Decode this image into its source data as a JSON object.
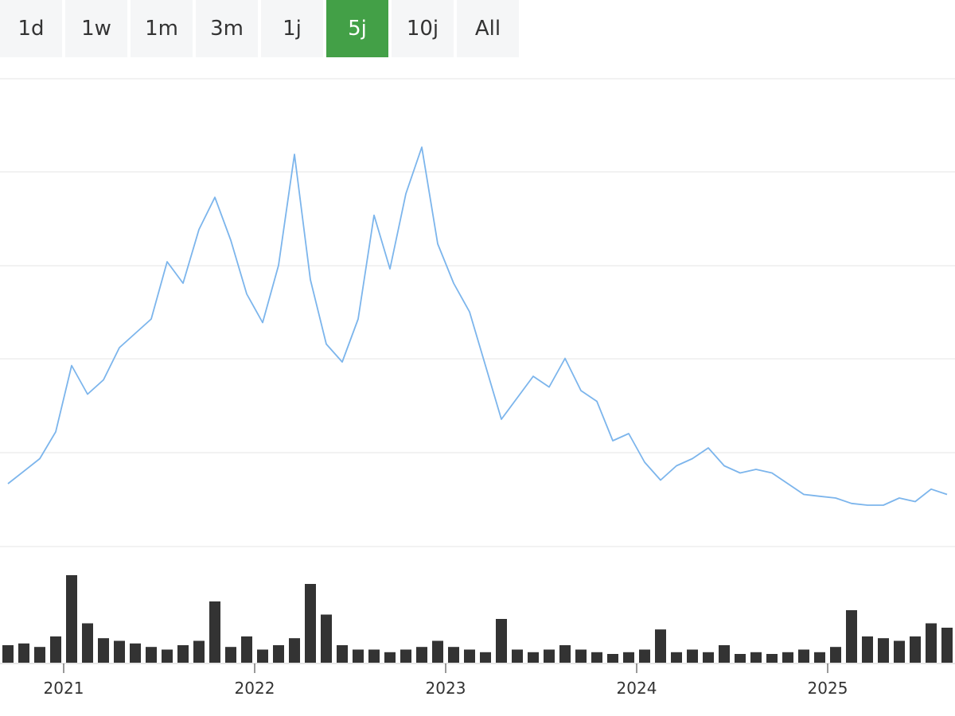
{
  "range_selector": {
    "buttons": [
      {
        "label": "1d"
      },
      {
        "label": "1w"
      },
      {
        "label": "1m"
      },
      {
        "label": "3m"
      },
      {
        "label": "1j"
      },
      {
        "label": "5j",
        "active": true
      },
      {
        "label": "10j"
      },
      {
        "label": "All"
      }
    ],
    "active_color": "#43a047"
  },
  "chart_data": [
    {
      "type": "line",
      "title": "",
      "xlabel": "",
      "ylabel": "",
      "x_tick_labels": [
        "2021",
        "2022",
        "2023",
        "2024",
        "2025"
      ],
      "x_range": [
        "2020-09",
        "2025-08"
      ],
      "y_tick_labels": [],
      "grid": true,
      "legend": "none",
      "line_color": "#7cb5ec",
      "series": [
        {
          "x": [
            "2020-09",
            "2020-10",
            "2020-11",
            "2020-12",
            "2021-01",
            "2021-02",
            "2021-03",
            "2021-04",
            "2021-05",
            "2021-06",
            "2021-07",
            "2021-08",
            "2021-09",
            "2021-10",
            "2021-11",
            "2021-12",
            "2022-01",
            "2022-02",
            "2022-03",
            "2022-04",
            "2022-05",
            "2022-06",
            "2022-07",
            "2022-08",
            "2022-09",
            "2022-10",
            "2022-11",
            "2022-12",
            "2023-01",
            "2023-02",
            "2023-03",
            "2023-04",
            "2023-05",
            "2023-06",
            "2023-07",
            "2023-08",
            "2023-09",
            "2023-10",
            "2023-11",
            "2023-12",
            "2024-01",
            "2024-02",
            "2024-03",
            "2024-04",
            "2024-05",
            "2024-06",
            "2024-07",
            "2024-08",
            "2024-09",
            "2024-10",
            "2024-11",
            "2024-12",
            "2025-01",
            "2025-02",
            "2025-03",
            "2025-04",
            "2025-05",
            "2025-06",
            "2025-07",
            "2025-08"
          ],
          "y": [
            0.6,
            0.95,
            1.3,
            2.05,
            3.9,
            3.1,
            3.5,
            4.4,
            4.8,
            5.2,
            6.8,
            6.2,
            7.7,
            8.6,
            7.4,
            5.9,
            5.1,
            6.7,
            9.8,
            6.3,
            4.5,
            4.0,
            5.2,
            8.1,
            6.6,
            8.7,
            10.0,
            7.3,
            6.2,
            5.4,
            3.9,
            2.4,
            3.0,
            3.6,
            3.3,
            4.1,
            3.2,
            2.9,
            1.8,
            2.0,
            1.2,
            0.7,
            1.1,
            1.3,
            1.6,
            1.1,
            0.9,
            1.0,
            0.9,
            0.6,
            0.3,
            0.25,
            0.2,
            0.05,
            0.0,
            0.0,
            0.2,
            0.1,
            0.45,
            0.3
          ]
        }
      ]
    },
    {
      "type": "bar",
      "title": "",
      "xlabel": "",
      "ylabel": "",
      "x_tick_labels": [
        "2021",
        "2022",
        "2023",
        "2024",
        "2025"
      ],
      "y_tick_labels": [],
      "grid": false,
      "bar_color": "#333333",
      "series": [
        {
          "x": [
            "2020-09",
            "2020-10",
            "2020-11",
            "2020-12",
            "2021-01",
            "2021-02",
            "2021-03",
            "2021-04",
            "2021-05",
            "2021-06",
            "2021-07",
            "2021-08",
            "2021-09",
            "2021-10",
            "2021-11",
            "2021-12",
            "2022-01",
            "2022-02",
            "2022-03",
            "2022-04",
            "2022-05",
            "2022-06",
            "2022-07",
            "2022-08",
            "2022-09",
            "2022-10",
            "2022-11",
            "2022-12",
            "2023-01",
            "2023-02",
            "2023-03",
            "2023-04",
            "2023-05",
            "2023-06",
            "2023-07",
            "2023-08",
            "2023-09",
            "2023-10",
            "2023-11",
            "2023-12",
            "2024-01",
            "2024-02",
            "2024-03",
            "2024-04",
            "2024-05",
            "2024-06",
            "2024-07",
            "2024-08",
            "2024-09",
            "2024-10",
            "2024-11",
            "2024-12",
            "2025-01",
            "2025-02",
            "2025-03",
            "2025-04",
            "2025-05",
            "2025-06",
            "2025-07",
            "2025-08"
          ],
          "values": [
            20,
            22,
            18,
            30,
            100,
            45,
            28,
            25,
            22,
            18,
            15,
            20,
            25,
            70,
            18,
            30,
            15,
            20,
            28,
            90,
            55,
            20,
            15,
            15,
            12,
            15,
            18,
            25,
            18,
            15,
            12,
            50,
            15,
            12,
            15,
            20,
            15,
            12,
            10,
            12,
            15,
            38,
            12,
            15,
            12,
            20,
            10,
            12,
            10,
            12,
            15,
            12,
            18,
            60,
            30,
            28,
            25,
            30,
            45,
            40
          ]
        }
      ]
    }
  ]
}
